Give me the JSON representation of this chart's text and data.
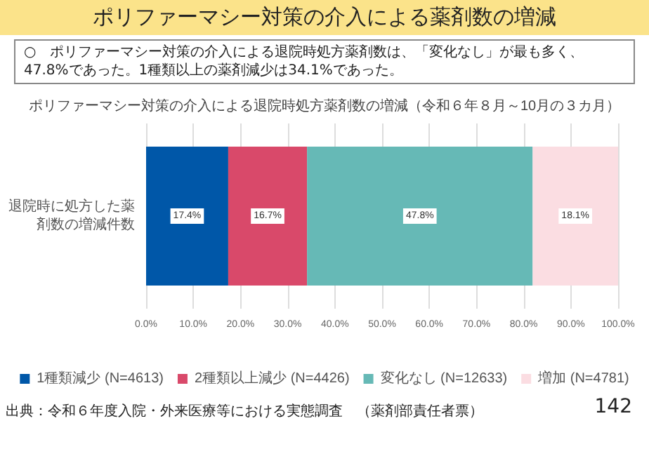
{
  "chart_data": {
    "type": "bar",
    "orientation": "horizontal",
    "stacked": true,
    "title": "ポリファーマシー対策の介入による薬剤数の増減",
    "subtitle": "ポリファーマシー対策の介入による退院時処方薬剤数の増減（令和６年８月～10月の３カ月）",
    "annotations": [
      "○　ポリファーマシー対策の介入による退院時処方薬剤数は、「変化なし」が最も多く、47.8%であった。1種類以上の薬剤減少は34.1%であった。",
      "出典：令和６年度入院・外来医療等における実態調査　（薬剤部責任者票）",
      "142"
    ],
    "categories": [
      "退院時に処方した薬剤数の増減件数"
    ],
    "series": [
      {
        "name": "1種類減少 (N=4613)",
        "color": "#0057a8",
        "values": [
          17.4
        ],
        "value_labels": [
          "17.4%"
        ]
      },
      {
        "name": "2種類以上減少 (N=4426)",
        "color": "#d9496a",
        "values": [
          16.7
        ],
        "value_labels": [
          "16.7%"
        ]
      },
      {
        "name": "変化なし (N=12633)",
        "color": "#66b9b6",
        "values": [
          47.8
        ],
        "value_labels": [
          "47.8%"
        ]
      },
      {
        "name": "増加 (N=4781)",
        "color": "#fbdde2",
        "values": [
          18.1
        ],
        "value_labels": [
          "18.1%"
        ]
      }
    ],
    "xlim": [
      0,
      100
    ],
    "xticks": [
      {
        "value": 0,
        "label": "0.0%"
      },
      {
        "value": 10,
        "label": "10.0%"
      },
      {
        "value": 20,
        "label": "20.0%"
      },
      {
        "value": 30,
        "label": "30.0%"
      },
      {
        "value": 40,
        "label": "40.0%"
      },
      {
        "value": 50,
        "label": "50.0%"
      },
      {
        "value": 60,
        "label": "60.0%"
      },
      {
        "value": 70,
        "label": "70.0%"
      },
      {
        "value": 80,
        "label": "80.0%"
      },
      {
        "value": 90,
        "label": "90.0%"
      },
      {
        "value": 100,
        "label": "100.0%"
      }
    ],
    "grid": "x",
    "legend": "bottom"
  }
}
